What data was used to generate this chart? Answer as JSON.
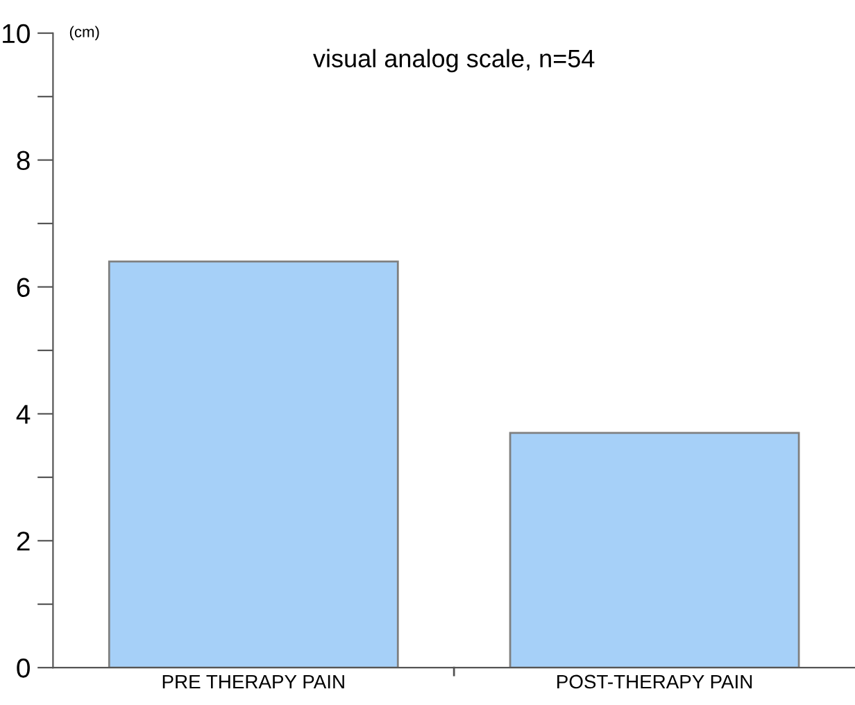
{
  "chart_data": {
    "type": "bar",
    "title": "visual analog scale, n=54",
    "ylabel": "(cm)",
    "categories": [
      "PRE THERAPY PAIN",
      "POST-THERAPY PAIN"
    ],
    "values": [
      6.4,
      3.7
    ],
    "color": "#a6d0f8",
    "ylim": [
      0,
      10
    ],
    "yticks": [
      0,
      {
        "value": 1,
        "label": null
      },
      2,
      {
        "value": 3,
        "label": null
      },
      4,
      {
        "value": 5,
        "label": null
      },
      6,
      {
        "value": 7,
        "label": null
      },
      8,
      {
        "value": 9,
        "label": null
      },
      10
    ],
    "grid": false,
    "legend": false
  }
}
